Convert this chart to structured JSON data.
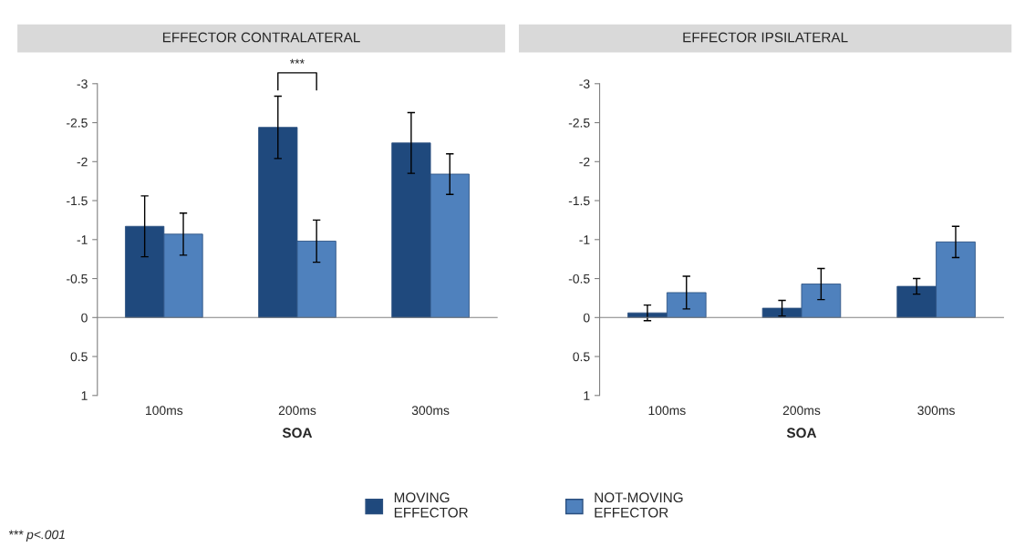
{
  "chart_data": [
    {
      "type": "bar",
      "title": "EFFECTOR CONTRALATERAL",
      "xlabel": "SOA",
      "categories": [
        "100ms",
        "200ms",
        "300ms"
      ],
      "series": [
        {
          "name": "MOVING\nEFFECTOR",
          "color": "#1f497d",
          "values": [
            -1.17,
            -2.44,
            -2.24
          ],
          "errors": [
            0.39,
            0.4,
            0.39
          ]
        },
        {
          "name": "NOT-MOVING\nEFFECTOR",
          "color": "#4f81bd",
          "values": [
            -1.07,
            -0.98,
            -1.84
          ],
          "errors": [
            0.27,
            0.27,
            0.26
          ]
        }
      ],
      "ylim": [
        1,
        -3
      ],
      "yticks": [
        -3,
        -2.5,
        -2,
        -1.5,
        -1,
        -0.5,
        0,
        0.5,
        1
      ],
      "legend": "bottom",
      "annotations": [
        "***",
        "*** p<.001"
      ]
    },
    {
      "type": "bar",
      "title": "EFFECTOR IPSILATERAL",
      "xlabel": "SOA",
      "categories": [
        "100ms",
        "200ms",
        "300ms"
      ],
      "series": [
        {
          "color": "#1f497d",
          "values": [
            -0.06,
            -0.12,
            -0.4
          ],
          "errors": [
            0.1,
            0.1,
            0.1
          ]
        },
        {
          "color": "#4f81bd",
          "values": [
            -0.32,
            -0.43,
            -0.97
          ],
          "errors": [
            0.21,
            0.2,
            0.2
          ]
        }
      ],
      "ylim": [
        1,
        -3
      ],
      "yticks": [
        -3,
        -2.5,
        -2,
        -1.5,
        -1,
        -0.5,
        0,
        0.5,
        1
      ]
    }
  ]
}
